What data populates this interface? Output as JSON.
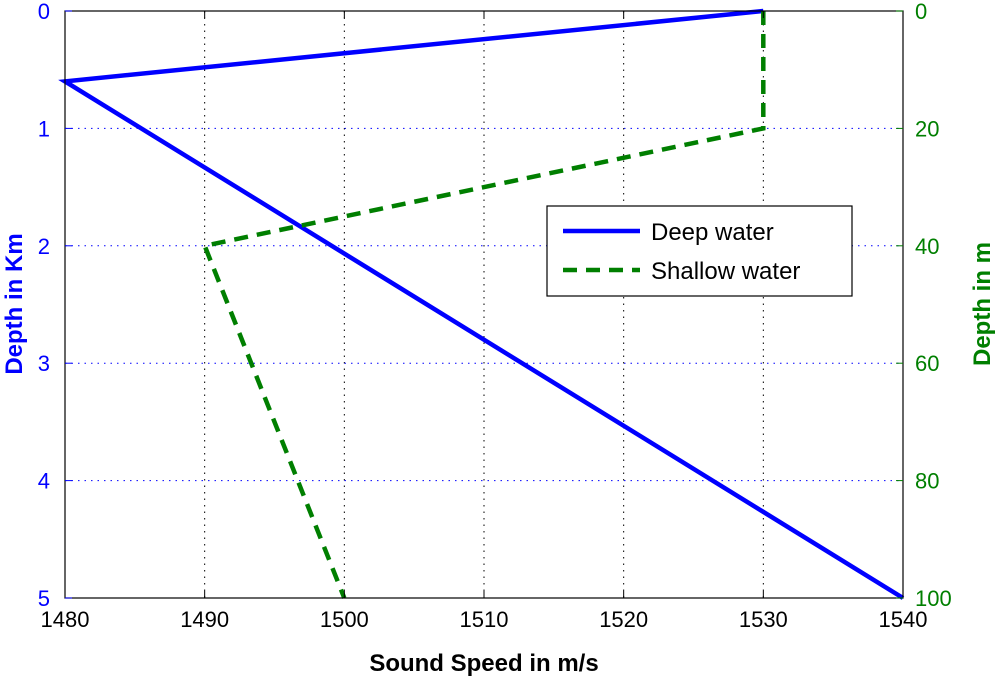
{
  "chart_data": {
    "type": "line",
    "xlabel": "Sound Speed in m/s",
    "ylabel_left": "Depth in Km",
    "ylabel_right": "Depth in m",
    "xlim": [
      1480,
      1540
    ],
    "ylim_left": [
      0,
      5
    ],
    "ylim_right": [
      0,
      100
    ],
    "y_inverted": true,
    "grid": true,
    "legend_position": "center-right",
    "x_ticks": [
      1480,
      1490,
      1500,
      1510,
      1520,
      1530,
      1540
    ],
    "y_left_ticks": [
      0,
      1,
      2,
      3,
      4,
      5
    ],
    "y_right_ticks": [
      0,
      20,
      40,
      60,
      80,
      100
    ],
    "colors": {
      "left_axis": "#0000ff",
      "right_axis": "#007f00"
    },
    "series": [
      {
        "name": "Deep water",
        "axis": "left",
        "style": "solid",
        "color": "#0000ff",
        "x": [
          1530,
          1480,
          1540
        ],
        "y": [
          0,
          0.6,
          5
        ]
      },
      {
        "name": "Shallow water",
        "axis": "right",
        "style": "dashed",
        "color": "#007f00",
        "x": [
          1530,
          1530,
          1490,
          1500
        ],
        "y": [
          0,
          20,
          40,
          100
        ]
      }
    ]
  }
}
